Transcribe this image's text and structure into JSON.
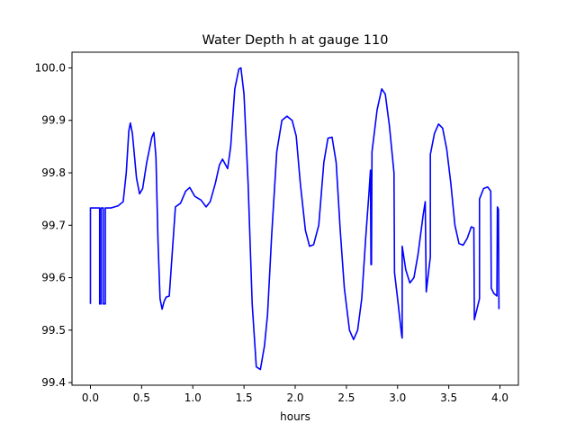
{
  "chart_data": {
    "type": "line",
    "title": "Water Depth h at gauge 110",
    "xlabel": "hours",
    "ylabel": "",
    "xlim": [
      -0.18,
      4.18
    ],
    "ylim": [
      99.395,
      100.03
    ],
    "grid": false,
    "x_ticks": [
      0.0,
      0.5,
      1.0,
      1.5,
      2.0,
      2.5,
      3.0,
      3.5,
      4.0
    ],
    "x_tick_labels": [
      "0.0",
      "0.5",
      "1.0",
      "1.5",
      "2.0",
      "2.5",
      "3.0",
      "3.5",
      "4.0"
    ],
    "y_ticks": [
      99.4,
      99.5,
      99.6,
      99.7,
      99.8,
      99.9,
      100.0
    ],
    "y_tick_labels": [
      "99.4",
      "99.5",
      "99.6",
      "99.7",
      "99.8",
      "99.9",
      "100.0"
    ],
    "series": [
      {
        "name": "",
        "color": "#0000ff",
        "points": [
          [
            0.0,
            99.55
          ],
          [
            0.0,
            99.733
          ],
          [
            0.09,
            99.733
          ],
          [
            0.09,
            99.55
          ],
          [
            0.105,
            99.55
          ],
          [
            0.105,
            99.733
          ],
          [
            0.125,
            99.733
          ],
          [
            0.125,
            99.55
          ],
          [
            0.145,
            99.55
          ],
          [
            0.145,
            99.733
          ],
          [
            0.2,
            99.733
          ],
          [
            0.27,
            99.737
          ],
          [
            0.32,
            99.745
          ],
          [
            0.35,
            99.8
          ],
          [
            0.375,
            99.88
          ],
          [
            0.39,
            99.895
          ],
          [
            0.41,
            99.875
          ],
          [
            0.45,
            99.79
          ],
          [
            0.48,
            99.76
          ],
          [
            0.51,
            99.77
          ],
          [
            0.55,
            99.82
          ],
          [
            0.6,
            99.868
          ],
          [
            0.62,
            99.877
          ],
          [
            0.64,
            99.83
          ],
          [
            0.66,
            99.67
          ],
          [
            0.68,
            99.56
          ],
          [
            0.7,
            99.54
          ],
          [
            0.72,
            99.555
          ],
          [
            0.74,
            99.563
          ],
          [
            0.77,
            99.565
          ],
          [
            0.8,
            99.65
          ],
          [
            0.83,
            99.735
          ],
          [
            0.88,
            99.742
          ],
          [
            0.93,
            99.765
          ],
          [
            0.97,
            99.772
          ],
          [
            1.02,
            99.755
          ],
          [
            1.08,
            99.748
          ],
          [
            1.13,
            99.735
          ],
          [
            1.17,
            99.745
          ],
          [
            1.22,
            99.78
          ],
          [
            1.26,
            99.815
          ],
          [
            1.29,
            99.826
          ],
          [
            1.34,
            99.808
          ],
          [
            1.37,
            99.85
          ],
          [
            1.41,
            99.96
          ],
          [
            1.45,
            99.998
          ],
          [
            1.47,
            100.0
          ],
          [
            1.5,
            99.95
          ],
          [
            1.54,
            99.78
          ],
          [
            1.58,
            99.55
          ],
          [
            1.62,
            99.43
          ],
          [
            1.66,
            99.425
          ],
          [
            1.7,
            99.47
          ],
          [
            1.73,
            99.53
          ],
          [
            1.77,
            99.68
          ],
          [
            1.82,
            99.84
          ],
          [
            1.87,
            99.9
          ],
          [
            1.92,
            99.908
          ],
          [
            1.97,
            99.9
          ],
          [
            2.01,
            99.87
          ],
          [
            2.05,
            99.78
          ],
          [
            2.1,
            99.69
          ],
          [
            2.14,
            99.66
          ],
          [
            2.18,
            99.663
          ],
          [
            2.23,
            99.7
          ],
          [
            2.28,
            99.82
          ],
          [
            2.32,
            99.866
          ],
          [
            2.36,
            99.868
          ],
          [
            2.4,
            99.82
          ],
          [
            2.44,
            99.69
          ],
          [
            2.48,
            99.58
          ],
          [
            2.53,
            99.5
          ],
          [
            2.57,
            99.482
          ],
          [
            2.61,
            99.5
          ],
          [
            2.65,
            99.56
          ],
          [
            2.69,
            99.68
          ],
          [
            2.72,
            99.76
          ],
          [
            2.735,
            99.805
          ],
          [
            2.74,
            99.625
          ],
          [
            2.745,
            99.625
          ],
          [
            2.75,
            99.84
          ],
          [
            2.8,
            99.92
          ],
          [
            2.845,
            99.96
          ],
          [
            2.88,
            99.95
          ],
          [
            2.92,
            99.89
          ],
          [
            2.965,
            99.8
          ],
          [
            2.97,
            99.61
          ],
          [
            3.0,
            99.56
          ],
          [
            3.04,
            99.49
          ],
          [
            3.045,
            99.485
          ],
          [
            3.045,
            99.66
          ],
          [
            3.08,
            99.615
          ],
          [
            3.12,
            99.59
          ],
          [
            3.16,
            99.6
          ],
          [
            3.2,
            99.645
          ],
          [
            3.25,
            99.72
          ],
          [
            3.27,
            99.745
          ],
          [
            3.28,
            99.573
          ],
          [
            3.32,
            99.64
          ],
          [
            3.32,
            99.835
          ],
          [
            3.36,
            99.875
          ],
          [
            3.4,
            99.893
          ],
          [
            3.44,
            99.885
          ],
          [
            3.48,
            99.845
          ],
          [
            3.52,
            99.78
          ],
          [
            3.56,
            99.7
          ],
          [
            3.6,
            99.665
          ],
          [
            3.64,
            99.662
          ],
          [
            3.68,
            99.675
          ],
          [
            3.72,
            99.697
          ],
          [
            3.745,
            99.695
          ],
          [
            3.75,
            99.52
          ],
          [
            3.8,
            99.56
          ],
          [
            3.8,
            99.75
          ],
          [
            3.84,
            99.77
          ],
          [
            3.88,
            99.773
          ],
          [
            3.91,
            99.765
          ],
          [
            3.915,
            99.58
          ],
          [
            3.94,
            99.57
          ],
          [
            3.97,
            99.565
          ],
          [
            3.975,
            99.735
          ],
          [
            3.985,
            99.73
          ],
          [
            3.99,
            99.54
          ]
        ]
      }
    ]
  }
}
